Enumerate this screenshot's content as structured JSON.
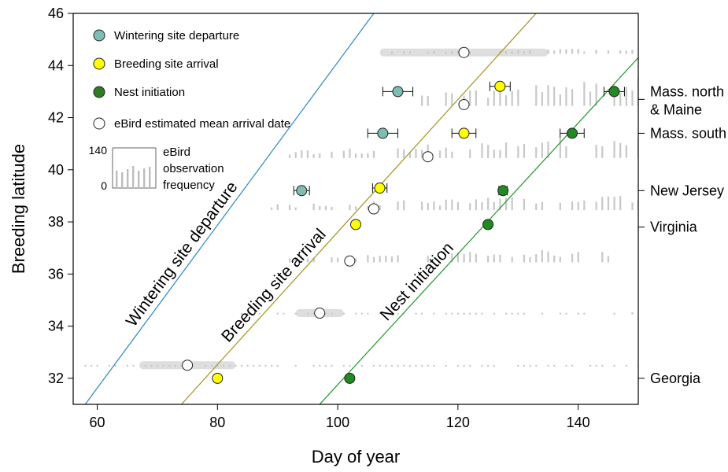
{
  "chart_data": {
    "type": "scatter",
    "xlabel": "Day of year",
    "ylabel": "Breeding latitude",
    "xlim": [
      56,
      150
    ],
    "ylim": [
      31,
      46
    ],
    "x_ticks": [
      "60",
      "80",
      "100",
      "120",
      "140"
    ],
    "y_ticks": [
      "32",
      "34",
      "36",
      "38",
      "40",
      "42",
      "44",
      "46"
    ],
    "grid": false,
    "legend_position": "top-left",
    "legend": {
      "items": [
        {
          "label": "Wintering site departure",
          "color": "#7dbdb6"
        },
        {
          "label": "Breeding site arrival",
          "color": "#ffff00"
        },
        {
          "label": "Nest initiation",
          "color": "#2e7d22"
        },
        {
          "label": "eBird estimated mean arrival date",
          "color": "#ffffff"
        }
      ],
      "histogram_key": {
        "text_lines": [
          "eBird",
          "observation",
          "frequency"
        ],
        "max_label": "140",
        "min_label": "0"
      }
    },
    "regions": [
      {
        "label_lines": [
          "Mass. north",
          "& Maine"
        ],
        "latitude": 42.7
      },
      {
        "label_lines": [
          "Mass. south"
        ],
        "latitude": 41.4
      },
      {
        "label_lines": [
          "New Jersey"
        ],
        "latitude": 39.2
      },
      {
        "label_lines": [
          "Virginia"
        ],
        "latitude": 37.8
      },
      {
        "label_lines": [
          "Georgia"
        ],
        "latitude": 32.0
      }
    ],
    "series": [
      {
        "name": "Wintering site departure",
        "color": "#7dbdb6",
        "points": [
          {
            "x": 94.0,
            "y": 39.2,
            "xerr": 1.3
          },
          {
            "x": 107.5,
            "y": 41.4,
            "xerr": 2.5
          },
          {
            "x": 110.0,
            "y": 43.0,
            "xerr": 2.5
          }
        ]
      },
      {
        "name": "Breeding site arrival",
        "color": "#ffff00",
        "points": [
          {
            "x": 80.0,
            "y": 32.0,
            "xerr": 0
          },
          {
            "x": 103.0,
            "y": 37.9,
            "xerr": 0
          },
          {
            "x": 107.0,
            "y": 39.3,
            "xerr": 1.2
          },
          {
            "x": 121.0,
            "y": 41.4,
            "xerr": 2.0
          },
          {
            "x": 127.0,
            "y": 43.2,
            "xerr": 1.7
          }
        ]
      },
      {
        "name": "Nest initiation",
        "color": "#218a21",
        "points": [
          {
            "x": 102.0,
            "y": 32.0,
            "xerr": 0
          },
          {
            "x": 125.0,
            "y": 37.9,
            "xerr": 0
          },
          {
            "x": 127.5,
            "y": 39.2,
            "xerr": 0.7
          },
          {
            "x": 139.0,
            "y": 41.4,
            "xerr": 2.0
          },
          {
            "x": 146.0,
            "y": 43.0,
            "xerr": 1.7
          }
        ]
      },
      {
        "name": "eBird estimated mean arrival date",
        "color": "#ffffff",
        "points": [
          {
            "x": 75.0,
            "y": 32.5,
            "ci": [
              67,
              83
            ]
          },
          {
            "x": 97.0,
            "y": 34.5,
            "ci": [
              93,
              101
            ]
          },
          {
            "x": 102.0,
            "y": 36.5,
            "ci": [
              102,
              102
            ]
          },
          {
            "x": 106.0,
            "y": 38.5,
            "ci": [
              106,
              106
            ]
          },
          {
            "x": 115.0,
            "y": 40.5,
            "ci": [
              115,
              115
            ]
          },
          {
            "x": 121.0,
            "y": 42.5,
            "ci": [
              121,
              121
            ]
          },
          {
            "x": 121.0,
            "y": 44.5,
            "ci": [
              107,
              135
            ]
          }
        ]
      }
    ],
    "trend_lines": [
      {
        "label": "Wintering site departure",
        "color": "#3a8fc0",
        "x1": 58,
        "y1": 31,
        "x2": 106,
        "y2": 46
      },
      {
        "label": "Breeding site arrival",
        "color": "#a89a2e",
        "x1": 74,
        "y1": 31,
        "x2": 133,
        "y2": 46
      },
      {
        "label": "Nest initiation",
        "color": "#2f9a3a",
        "x1": 97,
        "y1": 31,
        "x2": 150,
        "y2": 44.3
      }
    ],
    "ebird_histograms": [
      {
        "baseline": 32.45,
        "start": 58,
        "end": 150,
        "min": 0,
        "max": 8
      },
      {
        "baseline": 34.45,
        "start": 80,
        "end": 150,
        "min": 0,
        "max": 10
      },
      {
        "baseline": 36.45,
        "start": 90,
        "end": 150,
        "min": 0,
        "max": 70
      },
      {
        "baseline": 38.45,
        "start": 88,
        "end": 150,
        "min": 0,
        "max": 80
      },
      {
        "baseline": 40.45,
        "start": 92,
        "end": 150,
        "min": 0,
        "max": 110
      },
      {
        "baseline": 42.45,
        "start": 112,
        "end": 150,
        "min": 0,
        "max": 140
      },
      {
        "baseline": 44.45,
        "start": 108,
        "end": 150,
        "min": 0,
        "max": 30
      }
    ]
  }
}
